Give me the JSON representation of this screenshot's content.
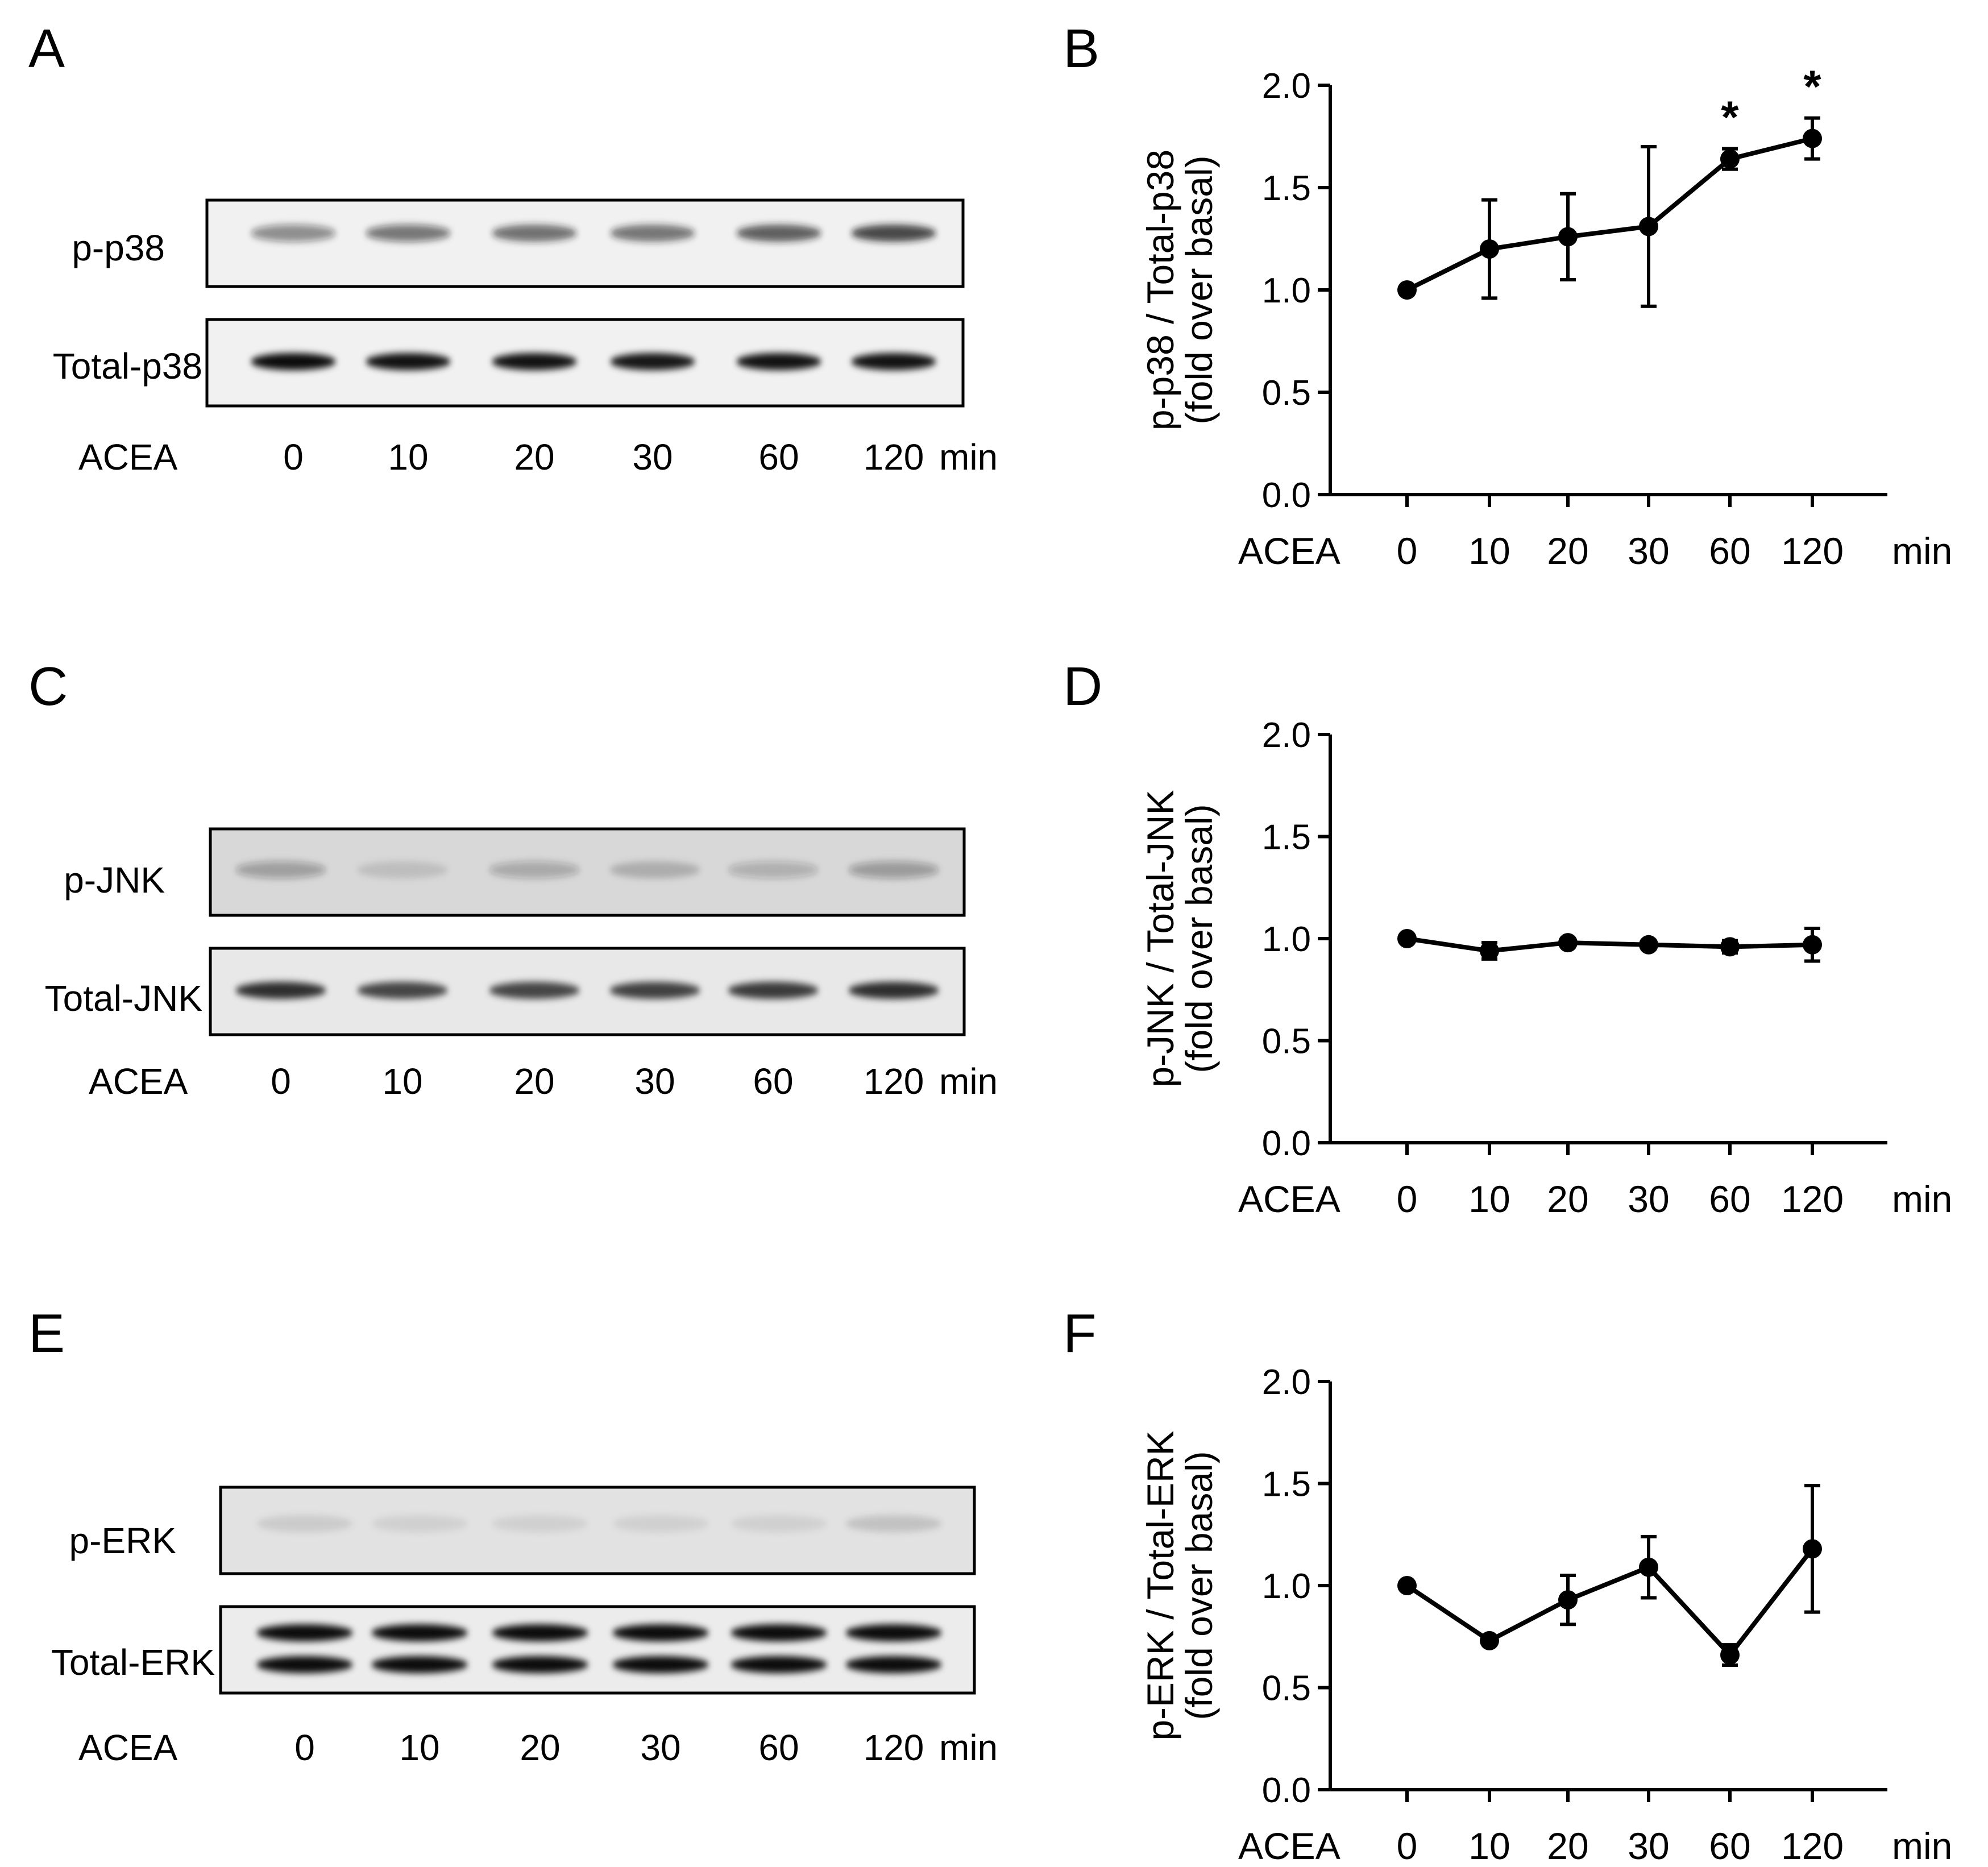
{
  "panels": {
    "A": {
      "letter": "A"
    },
    "B": {
      "letter": "B"
    },
    "C": {
      "letter": "C"
    },
    "D": {
      "letter": "D"
    },
    "E": {
      "letter": "E"
    },
    "F": {
      "letter": "F"
    }
  },
  "blots": [
    {
      "panel": "A",
      "top_label": "p-p38",
      "bottom_label": "Total-p38",
      "treatment_label": "ACEA",
      "lanes": [
        "0",
        "10",
        "20",
        "30",
        "60",
        "120"
      ],
      "unit": "min",
      "top_band_intensity": [
        0.45,
        0.55,
        0.6,
        0.58,
        0.68,
        0.78
      ],
      "bottom_band_intensity": [
        0.95,
        0.92,
        0.92,
        0.9,
        0.92,
        0.92
      ],
      "double_band": false
    },
    {
      "panel": "C",
      "top_label": "p-JNK",
      "bottom_label": "Total-JNK",
      "treatment_label": "ACEA",
      "lanes": [
        "0",
        "10",
        "20",
        "30",
        "60",
        "120"
      ],
      "unit": "min",
      "top_band_intensity": [
        0.3,
        0.12,
        0.25,
        0.2,
        0.22,
        0.32
      ],
      "bottom_band_intensity": [
        0.8,
        0.7,
        0.7,
        0.72,
        0.75,
        0.8
      ],
      "double_band": false
    },
    {
      "panel": "E",
      "top_label": "p-ERK",
      "bottom_label": "Total-ERK",
      "treatment_label": "ACEA",
      "lanes": [
        "0",
        "10",
        "20",
        "30",
        "60",
        "120"
      ],
      "unit": "min",
      "top_band_intensity": [
        0.1,
        0.08,
        0.08,
        0.08,
        0.08,
        0.14
      ],
      "bottom_band_intensity": [
        0.95,
        0.95,
        0.95,
        0.95,
        0.95,
        0.95
      ],
      "double_band": true
    }
  ],
  "chart_data": [
    {
      "panel": "B",
      "type": "line",
      "categories": [
        "0",
        "10",
        "20",
        "30",
        "60",
        "120"
      ],
      "values": [
        1.0,
        1.2,
        1.26,
        1.31,
        1.64,
        1.74
      ],
      "errors": [
        0.0,
        0.24,
        0.21,
        0.39,
        0.05,
        0.1
      ],
      "significance": [
        "",
        "",
        "",
        "",
        "*",
        "*"
      ],
      "ylabel": "p-p38 / Total-p38",
      "ylabel2": "(fold over basal)",
      "xlabel_left": "ACEA",
      "xlabel_right": "min",
      "ylim": [
        0,
        2.0
      ],
      "yticks": [
        "0.0",
        "0.5",
        "1.0",
        "1.5",
        "2.0"
      ]
    },
    {
      "panel": "D",
      "type": "line",
      "categories": [
        "0",
        "10",
        "20",
        "30",
        "60",
        "120"
      ],
      "values": [
        1.0,
        0.94,
        0.98,
        0.97,
        0.96,
        0.97
      ],
      "errors": [
        0.0,
        0.04,
        0.02,
        0.02,
        0.03,
        0.08
      ],
      "significance": [
        "",
        "",
        "",
        "",
        "",
        ""
      ],
      "ylabel": "p-JNK / Total-JNK",
      "ylabel2": "(fold over basal)",
      "xlabel_left": "ACEA",
      "xlabel_right": "min",
      "ylim": [
        0,
        2.0
      ],
      "yticks": [
        "0.0",
        "0.5",
        "1.0",
        "1.5",
        "2.0"
      ]
    },
    {
      "panel": "F",
      "type": "line",
      "categories": [
        "0",
        "10",
        "20",
        "30",
        "60",
        "120"
      ],
      "values": [
        1.0,
        0.73,
        0.93,
        1.09,
        0.66,
        1.18
      ],
      "errors": [
        0.0,
        0.02,
        0.12,
        0.15,
        0.05,
        0.31
      ],
      "significance": [
        "",
        "",
        "",
        "",
        "",
        ""
      ],
      "ylabel": "p-ERK / Total-ERK",
      "ylabel2": "(fold over basal)",
      "xlabel_left": "ACEA",
      "xlabel_right": "min",
      "ylim": [
        0,
        2.0
      ],
      "yticks": [
        "0.0",
        "0.5",
        "1.0",
        "1.5",
        "2.0"
      ]
    }
  ]
}
